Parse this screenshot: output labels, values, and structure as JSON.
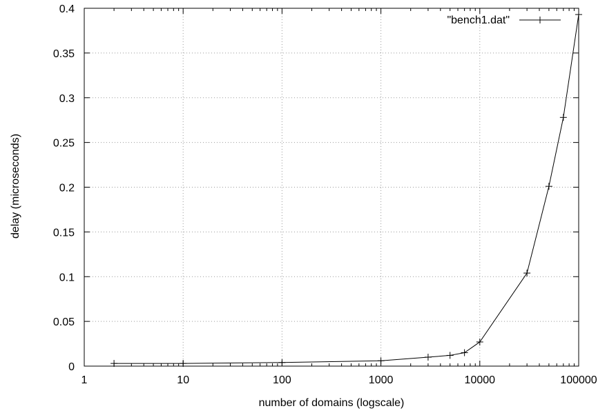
{
  "chart_data": {
    "type": "line",
    "xlabel": "number of domains (logscale)",
    "ylabel": "delay (microseconds)",
    "xscale": "log",
    "xlim": [
      1,
      100000
    ],
    "ylim": [
      0,
      0.4
    ],
    "grid": true,
    "legend_position": "top-right",
    "x_ticks": [
      1,
      10,
      100,
      1000,
      10000,
      100000
    ],
    "x_tick_labels": [
      "1",
      "10",
      "100",
      "1000",
      "10000",
      "100000"
    ],
    "y_ticks": [
      0,
      0.05,
      0.1,
      0.15,
      0.2,
      0.25,
      0.3,
      0.35,
      0.4
    ],
    "y_tick_labels": [
      "0",
      "0.05",
      "0.1",
      "0.15",
      "0.2",
      "0.25",
      "0.3",
      "0.35",
      "0.4"
    ],
    "series": [
      {
        "name": "\"bench1.dat\"",
        "color": "#000000",
        "marker": "plus",
        "x": [
          2,
          10,
          100,
          1000,
          3000,
          5000,
          7000,
          10000,
          30000,
          50000,
          70000,
          100000
        ],
        "y": [
          0.003,
          0.003,
          0.004,
          0.006,
          0.01,
          0.012,
          0.015,
          0.027,
          0.104,
          0.201,
          0.278,
          0.393
        ]
      }
    ]
  }
}
